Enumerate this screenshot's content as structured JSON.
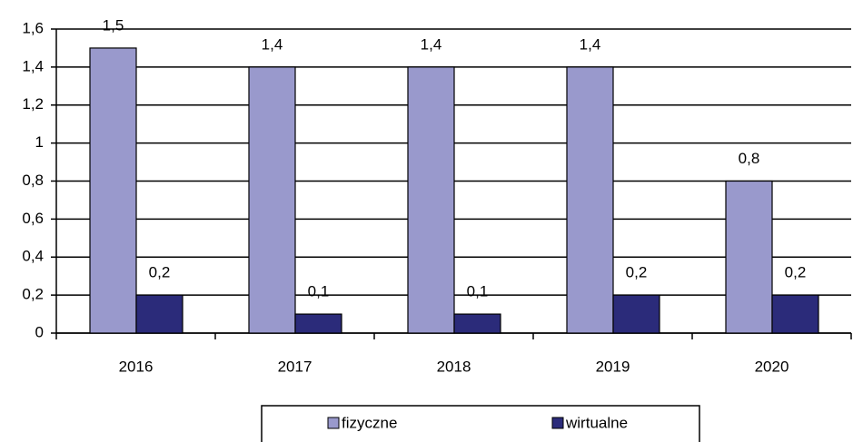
{
  "chart_data": {
    "type": "bar",
    "categories": [
      "2016",
      "2017",
      "2018",
      "2019",
      "2020"
    ],
    "series": [
      {
        "name": "fizyczne",
        "color": "#9999cc",
        "values": [
          1.5,
          1.4,
          1.4,
          1.4,
          0.8
        ],
        "value_labels": [
          "1,5",
          "1,4",
          "1,4",
          "1,4",
          "0,8"
        ]
      },
      {
        "name": "wirtualne",
        "color": "#2b2b7a",
        "values": [
          0.2,
          0.1,
          0.1,
          0.2,
          0.2
        ],
        "value_labels": [
          "0,2",
          "0,1",
          "0,1",
          "0,2",
          "0,2"
        ]
      }
    ],
    "ylim": [
      0,
      1.6
    ],
    "yticks": [
      0,
      {
        "value": 0.2,
        "label": "0,2"
      },
      {
        "value": 0.4,
        "label": "0,4"
      },
      {
        "value": 0.6,
        "label": "0,6"
      },
      {
        "value": 0.8,
        "label": "0,8"
      },
      1,
      {
        "value": 1.2,
        "label": "1,2"
      },
      {
        "value": 1.4,
        "label": "1,4"
      },
      {
        "value": 1.6,
        "label": "1,6"
      }
    ],
    "grid": true,
    "legend": "bottom"
  }
}
